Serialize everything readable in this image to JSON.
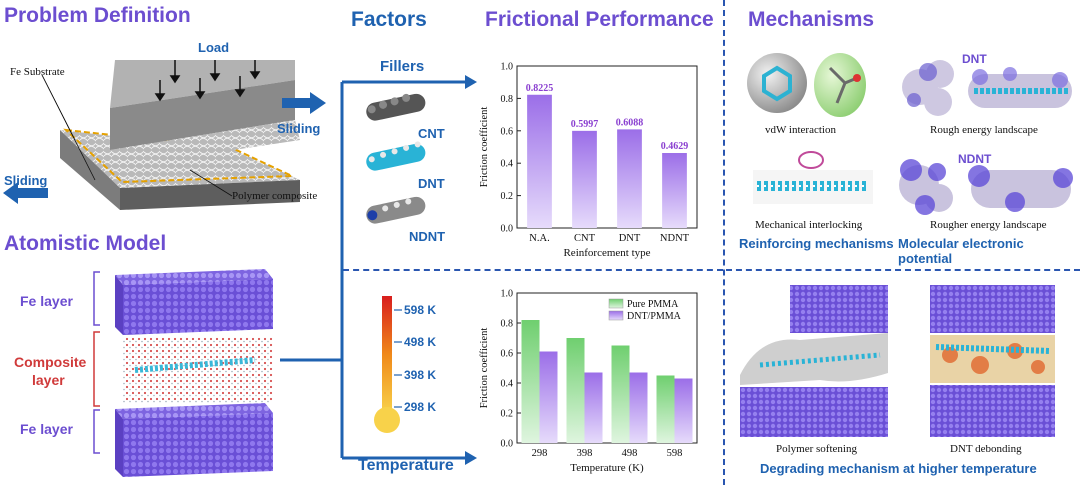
{
  "headers": {
    "problem": "Problem Definition",
    "atomistic": "Atomistic Model",
    "factors": "Factors",
    "frictional": "Frictional Performance",
    "mechanisms": "Mechanisms"
  },
  "problem_labels": {
    "load": "Load",
    "fe_substrate": "Fe Substrate",
    "sliding_right": "Sliding",
    "sliding_left": "Sliding",
    "polymer_composite": "Polymer composite"
  },
  "atomistic_labels": {
    "fe_top": "Fe layer",
    "composite_line1": "Composite",
    "composite_line2": "layer",
    "fe_bottom": "Fe layer"
  },
  "factors": {
    "fillers": "Fillers",
    "cnt": "CNT",
    "dnt": "DNT",
    "ndnt": "NDNT",
    "temperature": "Temperature",
    "thermo_ticks": [
      "598 K",
      "498 K",
      "398 K",
      "298 K"
    ]
  },
  "mechanisms": {
    "vdw": "vdW interaction",
    "rough": "Rough energy landscape",
    "dnt_label": "DNT",
    "ndnt_label": "NDNT",
    "interlock": "Mechanical interlocking",
    "rougher": "Rougher energy landscape",
    "reinforcing": "Reinforcing mechanisms",
    "molecular": "Molecular electronic potential",
    "softening": "Polymer softening",
    "debonding": "DNT debonding",
    "degrading": "Degrading mechanism at higher temperature"
  },
  "colors": {
    "purple": "#6c4ed0",
    "blue": "#1f62b0",
    "bar_purple": "#b18cf0",
    "bar_green": "#7fd17f"
  },
  "chart_data": [
    {
      "type": "bar",
      "title": "",
      "categories": [
        "N.A.",
        "CNT",
        "DNT",
        "NDNT"
      ],
      "values": [
        0.8225,
        0.5997,
        0.6088,
        0.4629
      ],
      "data_labels": [
        "0.8225",
        "0.5997",
        "0.6088",
        "0.4629"
      ],
      "xlabel": "Reinforcement type",
      "ylabel": "Friction coefficient",
      "ylim": [
        0.0,
        1.0
      ],
      "yticks": [
        "0.0",
        "0.2",
        "0.4",
        "0.6",
        "0.8",
        "1.0"
      ]
    },
    {
      "type": "bar",
      "title": "",
      "categories": [
        "298",
        "398",
        "498",
        "598"
      ],
      "series": [
        {
          "name": "Pure PMMA",
          "values": [
            0.82,
            0.7,
            0.65,
            0.45
          ]
        },
        {
          "name": "DNT/PMMA",
          "values": [
            0.61,
            0.47,
            0.47,
            0.43
          ]
        }
      ],
      "xlabel": "Temperature (K)",
      "ylabel": "Friction coefficient",
      "ylim": [
        0.0,
        1.0
      ],
      "yticks": [
        "0.0",
        "0.2",
        "0.4",
        "0.6",
        "0.8",
        "1.0"
      ],
      "legend": "top-right"
    }
  ]
}
